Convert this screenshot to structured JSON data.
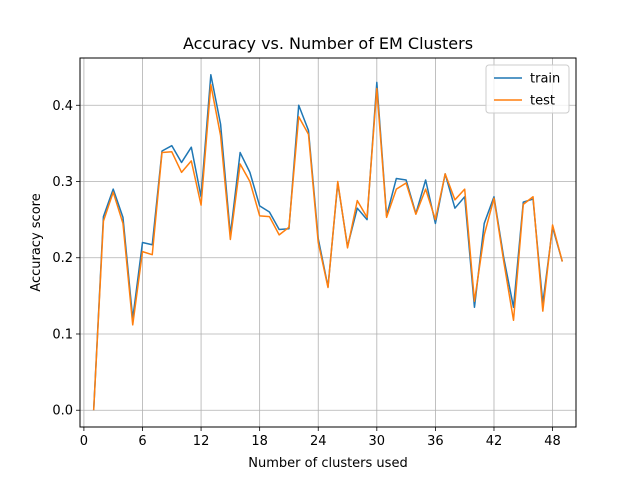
{
  "chart_data": {
    "type": "line",
    "title": "Accuracy vs. Number of EM Clusters",
    "xlabel": "Number of clusters used",
    "ylabel": "Accuracy score",
    "xlim": [
      -0.4,
      50.4
    ],
    "ylim": [
      -0.022,
      0.462
    ],
    "xticks": [
      0,
      6,
      12,
      18,
      24,
      30,
      36,
      42,
      48
    ],
    "yticks": [
      0.0,
      0.1,
      0.2,
      0.3,
      0.4
    ],
    "ytick_labels": [
      "0.0",
      "0.1",
      "0.2",
      "0.3",
      "0.4"
    ],
    "grid": true,
    "legend_position": "top-right",
    "x": [
      1,
      2,
      3,
      4,
      5,
      6,
      7,
      8,
      9,
      10,
      11,
      12,
      13,
      14,
      15,
      16,
      17,
      18,
      19,
      20,
      21,
      22,
      23,
      24,
      25,
      26,
      27,
      28,
      29,
      30,
      31,
      32,
      33,
      34,
      35,
      36,
      37,
      38,
      39,
      40,
      41,
      42,
      43,
      44,
      45,
      46,
      47,
      48,
      49
    ],
    "series": [
      {
        "name": "train",
        "color": "#1f77b4",
        "values": [
          0.0,
          0.254,
          0.29,
          0.253,
          0.12,
          0.22,
          0.217,
          0.34,
          0.347,
          0.325,
          0.345,
          0.28,
          0.44,
          0.375,
          0.23,
          0.338,
          0.312,
          0.268,
          0.26,
          0.237,
          0.238,
          0.4,
          0.367,
          0.225,
          0.162,
          0.298,
          0.215,
          0.265,
          0.25,
          0.43,
          0.255,
          0.304,
          0.302,
          0.258,
          0.302,
          0.245,
          0.31,
          0.265,
          0.28,
          0.135,
          0.245,
          0.28,
          0.2,
          0.135,
          0.273,
          0.277,
          0.14,
          0.24,
          0.195
        ]
      },
      {
        "name": "test",
        "color": "#ff7f0e",
        "values": [
          0.0,
          0.248,
          0.286,
          0.245,
          0.112,
          0.208,
          0.204,
          0.338,
          0.339,
          0.312,
          0.327,
          0.269,
          0.427,
          0.36,
          0.224,
          0.323,
          0.3,
          0.255,
          0.254,
          0.23,
          0.24,
          0.385,
          0.362,
          0.22,
          0.161,
          0.3,
          0.213,
          0.275,
          0.253,
          0.422,
          0.253,
          0.29,
          0.298,
          0.257,
          0.29,
          0.25,
          0.31,
          0.276,
          0.29,
          0.143,
          0.23,
          0.278,
          0.195,
          0.118,
          0.27,
          0.28,
          0.13,
          0.243,
          0.195
        ]
      }
    ]
  }
}
